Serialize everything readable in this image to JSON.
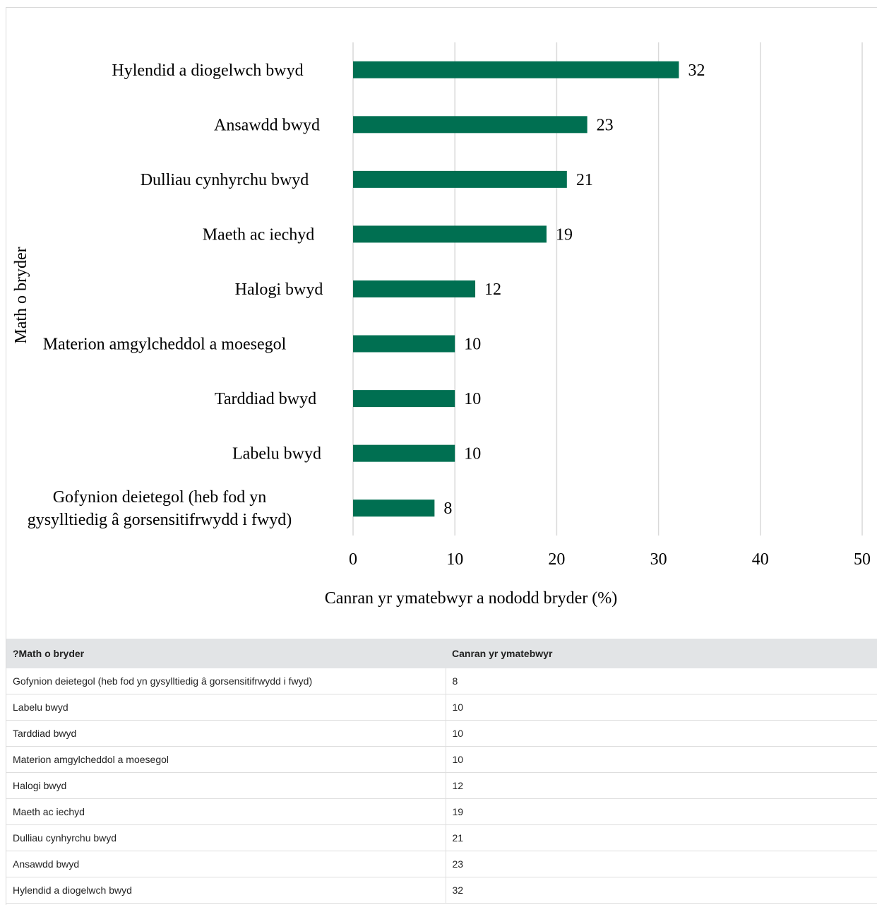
{
  "chart_data": {
    "type": "bar",
    "orientation": "horizontal",
    "categories": [
      "Hylendid a diogelwch bwyd",
      "Ansawdd bwyd",
      "Dulliau cynhyrchu bwyd",
      "Maeth ac iechyd",
      "Halogi bwyd",
      "Materion amgylcheddol a moesegol",
      "Tarddiad bwyd",
      "Labelu bwyd",
      "Gofynion deietegol (heb fod yn gysylltiedig â gorsensitifrwydd i fwyd)"
    ],
    "category_lines": [
      [
        "Hylendid a diogelwch bwyd"
      ],
      [
        "Ansawdd bwyd"
      ],
      [
        "Dulliau cynhyrchu bwyd"
      ],
      [
        "Maeth ac iechyd"
      ],
      [
        "Halogi bwyd"
      ],
      [
        "Materion amgylcheddol a moesegol"
      ],
      [
        "Tarddiad bwyd"
      ],
      [
        "Labelu bwyd"
      ],
      [
        "Gofynion deietegol (heb fod yn",
        "gysylltiedig â gorsensitifrwydd i fwyd)"
      ]
    ],
    "values": [
      32,
      23,
      21,
      19,
      12,
      10,
      10,
      10,
      8
    ],
    "xlabel": "Canran yr ymatebwyr a nododd bryder (%)",
    "ylabel": "Math o bryder",
    "xlim": [
      0,
      50
    ],
    "xticks": [
      0,
      10,
      20,
      30,
      40,
      50
    ],
    "grid": true,
    "bar_color": "#006f51",
    "grid_color": "#d9d9d9"
  },
  "table": {
    "headers": [
      "?Math o bryder",
      "Canran yr ymatebwyr"
    ],
    "rows": [
      [
        "Gofynion deietegol (heb fod yn gysylltiedig â gorsensitifrwydd i fwyd)",
        "8"
      ],
      [
        "Labelu bwyd",
        "10"
      ],
      [
        "Tarddiad bwyd",
        "10"
      ],
      [
        "Materion amgylcheddol a moesegol",
        "10"
      ],
      [
        "Halogi bwyd",
        "12"
      ],
      [
        "Maeth ac iechyd",
        "19"
      ],
      [
        "Dulliau cynhyrchu bwyd",
        "21"
      ],
      [
        "Ansawdd bwyd",
        "23"
      ],
      [
        "Hylendid a diogelwch bwyd",
        "32"
      ]
    ]
  }
}
